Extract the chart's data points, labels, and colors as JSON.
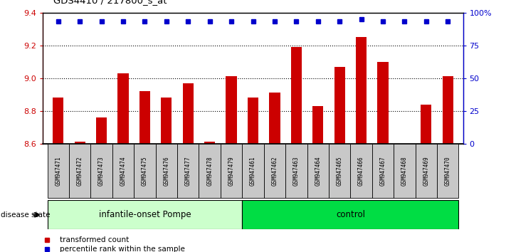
{
  "title": "GDS4410 / 217800_s_at",
  "samples": [
    "GSM947471",
    "GSM947472",
    "GSM947473",
    "GSM947474",
    "GSM947475",
    "GSM947476",
    "GSM947477",
    "GSM947478",
    "GSM947479",
    "GSM947461",
    "GSM947462",
    "GSM947463",
    "GSM947464",
    "GSM947465",
    "GSM947466",
    "GSM947467",
    "GSM947468",
    "GSM947469",
    "GSM947470"
  ],
  "bar_values": [
    8.88,
    8.61,
    8.76,
    9.03,
    8.92,
    8.88,
    8.97,
    8.61,
    9.01,
    8.88,
    8.91,
    9.19,
    8.83,
    9.07,
    9.25,
    9.1,
    8.6,
    8.84,
    9.01
  ],
  "percentile_right": [
    93.5,
    93.5,
    93.5,
    93.5,
    93.5,
    93.5,
    93.5,
    93.5,
    93.5,
    93.5,
    93.5,
    93.5,
    93.5,
    93.5,
    95.0,
    93.5,
    93.5,
    93.5,
    93.5
  ],
  "group_labels": [
    "infantile-onset Pompe",
    "control"
  ],
  "group_sizes": [
    9,
    10
  ],
  "group_colors": [
    "#AAFFAA",
    "#00DD44"
  ],
  "ylim_left": [
    8.6,
    9.4
  ],
  "ylim_right": [
    0,
    100
  ],
  "yticks_left": [
    8.6,
    8.8,
    9.0,
    9.2,
    9.4
  ],
  "yticks_right": [
    0,
    25,
    50,
    75,
    100
  ],
  "ytick_labels_right": [
    "0",
    "25",
    "50",
    "75",
    "100%"
  ],
  "bar_color": "#CC0000",
  "percentile_color": "#0000CC",
  "background_color": "#ffffff",
  "tick_bg_color": "#C8C8C8",
  "legend_labels": [
    "transformed count",
    "percentile rank within the sample"
  ],
  "disease_state_label": "disease state",
  "n_pompe": 9,
  "n_control": 10
}
